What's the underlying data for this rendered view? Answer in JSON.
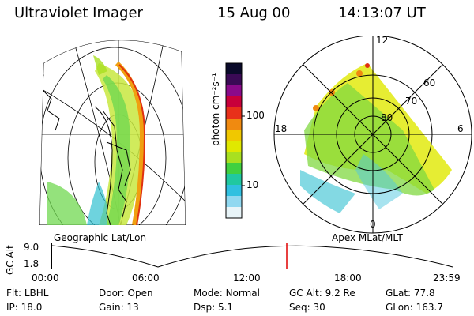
{
  "header": {
    "instrument": "Ultraviolet Imager",
    "date": "15 Aug 00",
    "time": "14:13:07 UT"
  },
  "left_panel": {
    "caption": "Geographic Lat/Lon"
  },
  "right_panel": {
    "caption": "Apex MLat/MLT",
    "mlt_labels": [
      "12",
      "18",
      "6",
      "0"
    ],
    "lat_labels": [
      "60",
      "70",
      "80"
    ]
  },
  "colorbar": {
    "unit_label": "photon cm⁻²s⁻¹",
    "tick_labels": [
      "100",
      "10"
    ],
    "colors": [
      "#0a0a2a",
      "#3a0a55",
      "#8a0a8a",
      "#c8003a",
      "#e8301a",
      "#f08a10",
      "#f0c800",
      "#e0e800",
      "#a8e020",
      "#40d040",
      "#20c8a0",
      "#30c0e0",
      "#90d8f0",
      "#e8f4f8"
    ]
  },
  "timeline": {
    "axis_label": "GC Alt",
    "y_labels": [
      "9.0",
      "1.8"
    ],
    "x_labels": [
      "00:00",
      "06:00",
      "12:00",
      "18:00",
      "23:59"
    ],
    "current_marker_color": "#e00000"
  },
  "info": {
    "row1": [
      {
        "label": "Flt:",
        "value": "LBHL"
      },
      {
        "label": "Door:",
        "value": "Open"
      },
      {
        "label": "Mode:",
        "value": "Normal"
      },
      {
        "label": "GC Alt:",
        "value": "9.2 Re"
      },
      {
        "label": "GLat:",
        "value": "77.8"
      }
    ],
    "row2": [
      {
        "label": "IP:",
        "value": "18.0"
      },
      {
        "label": "Gain:",
        "value": "13"
      },
      {
        "label": "Dsp:",
        "value": "5.1"
      },
      {
        "label": "Seq:",
        "value": "30"
      },
      {
        "label": "GLon:",
        "value": "163.7"
      }
    ]
  }
}
